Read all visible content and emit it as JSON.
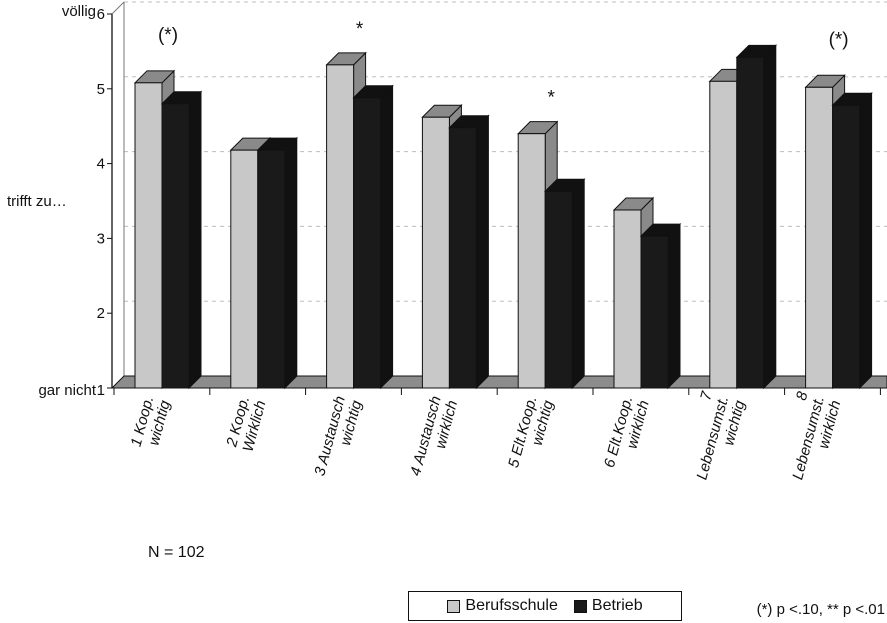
{
  "chart_data": {
    "type": "bar",
    "title": "",
    "xlabel": "",
    "ylabel": "",
    "ylim": [
      1,
      6
    ],
    "y_ticks": [
      1,
      2,
      3,
      4,
      5,
      6
    ],
    "y_anchor_labels": [
      {
        "value": 6,
        "text": "völlig"
      },
      {
        "value": 3.5,
        "text": "trifft zu…"
      },
      {
        "value": 1,
        "text": "gar nicht"
      }
    ],
    "categories": [
      [
        "1 Koop.",
        "wichtig"
      ],
      [
        "2 Koop.",
        "Wirklich"
      ],
      [
        "3 Austausch",
        "wichtig"
      ],
      [
        "4 Austausch",
        "wirklich"
      ],
      [
        "5 Elt.Koop.",
        "wichtig"
      ],
      [
        "6 Elt.Koop.",
        "wirklich"
      ],
      [
        "7",
        "Lebensumst.",
        "wichtig"
      ],
      [
        "8",
        "Lebensumst.",
        "wirklich"
      ]
    ],
    "series": [
      {
        "name": "Berufsschule",
        "color": "#c8c8c8",
        "values": [
          5.08,
          4.18,
          5.32,
          4.62,
          4.4,
          3.38,
          5.1,
          5.02
        ]
      },
      {
        "name": "Betrieb",
        "color": "#1a1a1a",
        "values": [
          4.8,
          4.18,
          4.88,
          4.48,
          3.63,
          3.03,
          5.42,
          4.78
        ]
      }
    ],
    "significance": [
      "(*)",
      "",
      "*",
      "",
      "*",
      "",
      "",
      "(*)"
    ],
    "grid": true,
    "legend_position": "bottom-center"
  },
  "sample_size": "N = 102",
  "footnote": "(*) p <.10, ** p <.01"
}
